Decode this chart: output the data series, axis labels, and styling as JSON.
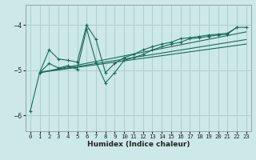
{
  "title": "",
  "xlabel": "Humidex (Indice chaleur)",
  "bg_color": "#cce8e8",
  "grid_color": "#aacccc",
  "line_color": "#1a6b5a",
  "xlim": [
    -0.5,
    23.5
  ],
  "ylim": [
    -6.35,
    -3.55
  ],
  "yticks": [
    -6,
    -5,
    -4
  ],
  "xticks": [
    0,
    1,
    2,
    3,
    4,
    5,
    6,
    7,
    8,
    9,
    10,
    11,
    12,
    13,
    14,
    15,
    16,
    17,
    18,
    19,
    20,
    21,
    22,
    23
  ],
  "curve_main_x": [
    0,
    1,
    2,
    3,
    4,
    5,
    6,
    7,
    8,
    9,
    10,
    11,
    12,
    13,
    14,
    15,
    16,
    17,
    18,
    19,
    20,
    21,
    22
  ],
  "curve_main_y": [
    -5.9,
    -5.05,
    -4.85,
    -4.95,
    -4.9,
    -4.98,
    -4.08,
    -4.82,
    -5.28,
    -5.05,
    -4.78,
    -4.72,
    -4.65,
    -4.55,
    -4.48,
    -4.42,
    -4.38,
    -4.3,
    -4.28,
    -4.25,
    -4.22,
    -4.2,
    -4.05
  ],
  "curve_upper_x": [
    1,
    2,
    3,
    4,
    5,
    6,
    7,
    8,
    9,
    10,
    11,
    12,
    13,
    14,
    15,
    16,
    17,
    18,
    19,
    20,
    21,
    22,
    23
  ],
  "curve_upper_y": [
    -5.05,
    -4.55,
    -4.75,
    -4.78,
    -4.82,
    -4.0,
    -4.32,
    -5.05,
    -4.85,
    -4.72,
    -4.65,
    -4.55,
    -4.48,
    -4.42,
    -4.38,
    -4.3,
    -4.28,
    -4.25,
    -4.22,
    -4.2,
    -4.18,
    -4.05,
    -4.05
  ],
  "straight_lines": [
    {
      "x": [
        1,
        23
      ],
      "y": [
        -5.05,
        -4.15
      ]
    },
    {
      "x": [
        1,
        23
      ],
      "y": [
        -5.05,
        -4.42
      ]
    },
    {
      "x": [
        1,
        23
      ],
      "y": [
        -5.05,
        -4.32
      ]
    }
  ]
}
